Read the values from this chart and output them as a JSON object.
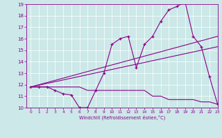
{
  "xlabel": "Windchill (Refroidissement éolien,°C)",
  "bg_color": "#cce8e8",
  "line_color": "#880088",
  "line1_x": [
    0,
    1,
    2,
    3,
    4,
    5,
    6,
    7,
    8,
    9,
    10,
    11,
    12,
    13,
    14,
    15,
    16,
    17,
    18,
    19,
    20,
    21,
    22,
    23
  ],
  "line1_y": [
    11.8,
    11.8,
    11.8,
    11.5,
    11.2,
    11.1,
    10.0,
    10.0,
    11.5,
    13.0,
    15.5,
    16.0,
    16.2,
    13.5,
    15.5,
    16.2,
    17.5,
    18.5,
    18.8,
    19.2,
    16.2,
    15.3,
    12.7,
    10.3
  ],
  "line2_x": [
    0,
    23
  ],
  "line2_y": [
    11.8,
    16.2
  ],
  "line3_x": [
    0,
    23
  ],
  "line3_y": [
    11.8,
    15.3
  ],
  "line4_x": [
    0,
    1,
    2,
    3,
    4,
    5,
    6,
    7,
    8,
    9,
    10,
    11,
    12,
    13,
    14,
    15,
    16,
    17,
    18,
    19,
    20,
    21,
    22,
    23
  ],
  "line4_y": [
    11.8,
    11.8,
    11.8,
    11.8,
    11.8,
    11.8,
    11.8,
    11.5,
    11.5,
    11.5,
    11.5,
    11.5,
    11.5,
    11.5,
    11.5,
    11.0,
    11.0,
    10.7,
    10.7,
    10.7,
    10.7,
    10.5,
    10.5,
    10.3
  ],
  "xlim": [
    -0.5,
    23
  ],
  "ylim": [
    10,
    19
  ],
  "xticks": [
    0,
    1,
    2,
    3,
    4,
    5,
    6,
    7,
    8,
    9,
    10,
    11,
    12,
    13,
    14,
    15,
    16,
    17,
    18,
    19,
    20,
    21,
    22,
    23
  ],
  "yticks": [
    10,
    11,
    12,
    13,
    14,
    15,
    16,
    17,
    18,
    19
  ]
}
